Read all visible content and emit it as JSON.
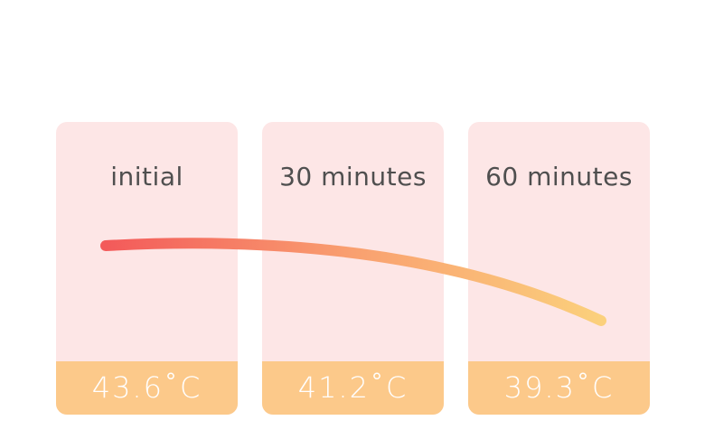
{
  "cards": [
    {
      "label": "initial",
      "temperature": "43.6˚C"
    },
    {
      "label": "30 minutes",
      "temperature": "41.2˚C"
    },
    {
      "label": "60 minutes",
      "temperature": "39.3˚C"
    }
  ]
}
